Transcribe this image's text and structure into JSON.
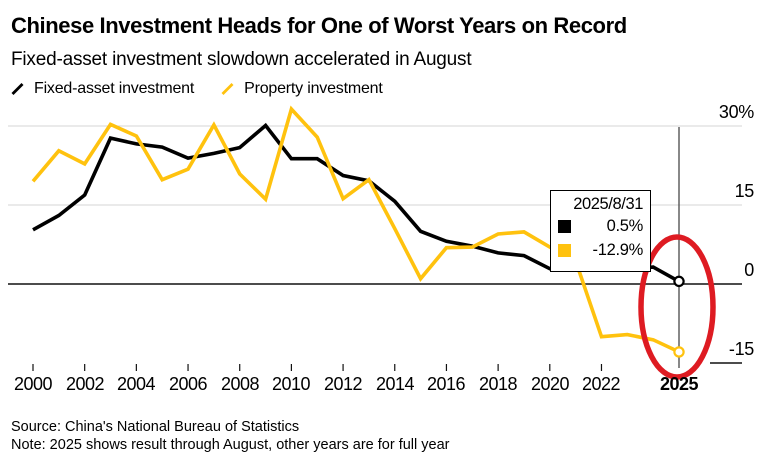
{
  "header": {
    "title": "Chinese Investment Heads for One of Worst Years on Record",
    "subtitle": "Fixed-asset investment slowdown accelerated in August"
  },
  "legend": {
    "items": [
      {
        "label": "Fixed-asset investment",
        "color": "#000000"
      },
      {
        "label": "Property investment",
        "color": "#ffc20e"
      }
    ]
  },
  "tooltip": {
    "date": "2025/8/31",
    "rows": [
      {
        "color": "#000000",
        "value": "0.5%"
      },
      {
        "color": "#ffc20e",
        "value": "-12.9%"
      }
    ]
  },
  "chart_data": {
    "type": "line",
    "title": "Chinese Investment Heads for One of Worst Years on Record",
    "subtitle": "Fixed-asset investment slowdown accelerated in August",
    "x": [
      2000,
      2001,
      2002,
      2003,
      2004,
      2005,
      2006,
      2007,
      2008,
      2009,
      2010,
      2011,
      2012,
      2013,
      2014,
      2015,
      2016,
      2017,
      2018,
      2019,
      2020,
      2021,
      2022,
      2023,
      2024,
      2025
    ],
    "series": [
      {
        "name": "Fixed-asset investment",
        "color": "#000000",
        "values": [
          10.3,
          13.0,
          16.9,
          27.7,
          26.6,
          26.0,
          23.9,
          24.8,
          25.9,
          30.1,
          23.8,
          23.8,
          20.6,
          19.6,
          15.7,
          10.0,
          8.1,
          7.2,
          5.9,
          5.4,
          2.9,
          4.9,
          5.1,
          3.0,
          3.2,
          0.5
        ]
      },
      {
        "name": "Property investment",
        "color": "#ffc20e",
        "values": [
          19.5,
          25.3,
          22.8,
          30.3,
          28.1,
          19.8,
          21.8,
          30.2,
          20.9,
          16.1,
          33.2,
          27.9,
          16.2,
          19.8,
          10.5,
          1.0,
          6.9,
          7.0,
          9.5,
          9.9,
          7.0,
          4.4,
          -10.0,
          -9.6,
          -10.6,
          -12.9
        ]
      }
    ],
    "ylim": [
      -18,
      34
    ],
    "xlim": [
      2000,
      2025
    ],
    "yticks": [
      {
        "label": "30%",
        "value": 30
      },
      {
        "label": "15",
        "value": 15
      },
      {
        "label": "0",
        "value": 0
      },
      {
        "label": "-15",
        "value": -15
      }
    ],
    "xtick_years": [
      2000,
      2002,
      2004,
      2006,
      2008,
      2010,
      2012,
      2014,
      2016,
      2018,
      2020,
      2022
    ],
    "final_x_label": "2025",
    "crosshair_year": 2025,
    "grid": "horizontal",
    "legend_position": "top",
    "annotation": {
      "shape": "ellipse",
      "color": "#de1b22"
    },
    "colors": {
      "grid": "#d4d4d4",
      "zero_line": "#111111",
      "crosshair": "#555555"
    }
  },
  "footer": {
    "source": "Source: China's National Bureau of Statistics",
    "note": "Note: 2025 shows result through August, other years are for full year"
  }
}
